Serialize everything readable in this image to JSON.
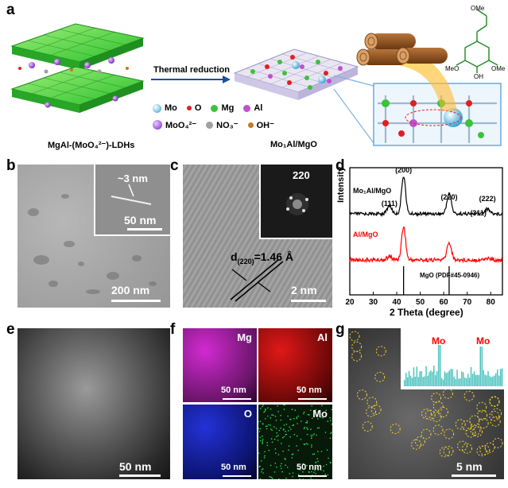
{
  "panel_a": {
    "label": "a",
    "arrow_label": "Thermal reduction",
    "left_caption": "MgAl-(MoO₄²⁻)-LDHs",
    "right_caption": "Mo₁Al/MgO",
    "legend": [
      {
        "symbol": "Mo",
        "color": "#2a9fd6"
      },
      {
        "symbol": "O",
        "color": "#e02020"
      },
      {
        "symbol": "Mg",
        "color": "#3cc23c"
      },
      {
        "symbol": "Al",
        "color": "#c050d0"
      },
      {
        "symbol": "MoO₄²⁻",
        "color": "#8a2be2"
      },
      {
        "symbol": "NO₃⁻",
        "color": "#a0a0a0"
      },
      {
        "symbol": "OH⁻",
        "color": "#c87820"
      }
    ],
    "molecule_labels": {
      "top": "OMe",
      "left": "MeO",
      "right": "OMe",
      "bottom": "OH"
    }
  },
  "panel_b": {
    "label": "b",
    "inset_text": "~3 nm",
    "inset_scale": "50 nm",
    "scale": "200 nm"
  },
  "panel_c": {
    "label": "c",
    "fft_label": "220",
    "d_spacing": "d(220)=1.46 Å",
    "d_main": "d",
    "d_sub": "(220)",
    "d_rest": "=1.46 Å",
    "scale": "2 nm"
  },
  "panel_d": {
    "label": "d",
    "chart_data": {
      "type": "line",
      "xlabel": "2 Theta (degree)",
      "ylabel": "Intensity",
      "xlim": [
        20,
        85
      ],
      "xticks": [
        "20",
        "30",
        "40",
        "50",
        "60",
        "70",
        "80"
      ],
      "series": [
        {
          "name": "Mo₁Al/MgO",
          "color": "#000000"
        },
        {
          "name": "Al/MgO",
          "color": "#ff0000"
        }
      ],
      "peaks": [
        {
          "x": 36.9,
          "label": "(111)"
        },
        {
          "x": 42.9,
          "label": "(200)"
        },
        {
          "x": 62.3,
          "label": "(220)"
        },
        {
          "x": 74.7,
          "label": "(311)"
        },
        {
          "x": 78.6,
          "label": "(222)"
        }
      ],
      "reference_label": "MgO (PDF#45-0946)",
      "reference_lines": [
        42.9,
        62.3
      ]
    }
  },
  "panel_e": {
    "label": "e",
    "scale": "50 nm"
  },
  "panel_f": {
    "label": "f",
    "maps": [
      {
        "element": "Mg",
        "color": "#d22ad2",
        "scale": "50 nm"
      },
      {
        "element": "Al",
        "color": "#e01818",
        "scale": "50 nm"
      },
      {
        "element": "O",
        "color": "#2432d8",
        "scale": "50 nm"
      },
      {
        "element": "Mo",
        "color": "#1fae3a",
        "scale": "50 nm"
      }
    ]
  },
  "panel_g": {
    "label": "g",
    "profile_labels": [
      "Mo",
      "Mo"
    ],
    "scale": "5 nm"
  }
}
